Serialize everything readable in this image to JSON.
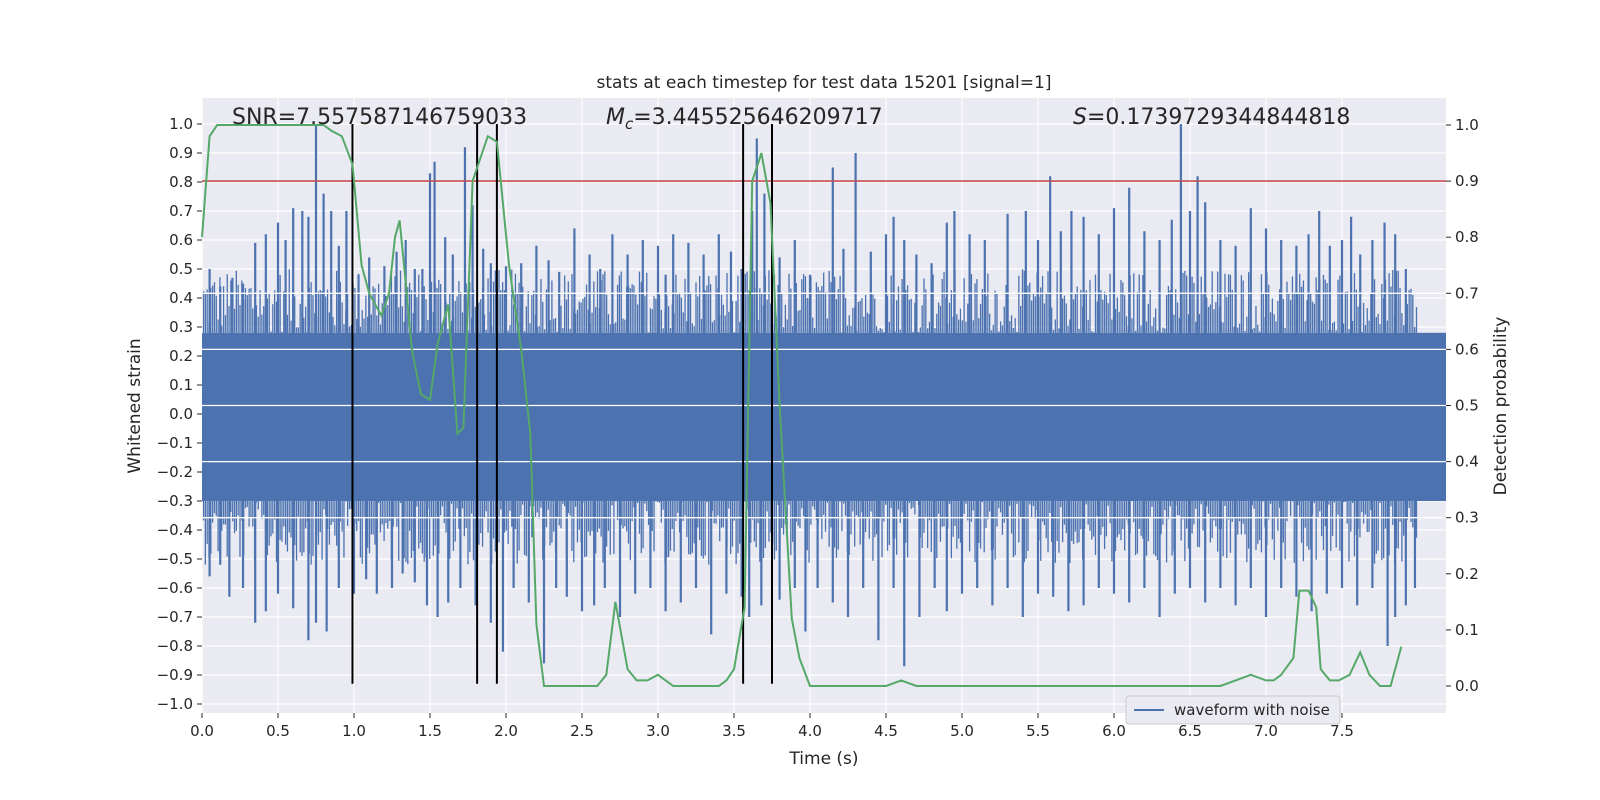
{
  "chart_data": {
    "type": "line",
    "title": "stats at each timestep for test data 15201 [signal=1]",
    "xlabel": "Time (s)",
    "ylabel_left": "Whitened strain",
    "ylabel_right": "Detection probability",
    "xlim": [
      0.0,
      8.0
    ],
    "ylim_left": [
      -1.05,
      1.05
    ],
    "ylim_right": [
      -0.05,
      1.05
    ],
    "x_ticks": [
      "0.0",
      "0.5",
      "1.0",
      "1.5",
      "2.0",
      "2.5",
      "3.0",
      "3.5",
      "4.0",
      "4.5",
      "5.0",
      "5.5",
      "6.0",
      "6.5",
      "7.0",
      "7.5"
    ],
    "left_ticks": [
      "1.0",
      "0.9",
      "0.8",
      "0.7",
      "0.6",
      "0.5",
      "0.4",
      "0.3",
      "0.2",
      "0.1",
      "0.0",
      "−0.1",
      "−0.2",
      "−0.3",
      "−0.4",
      "−0.5",
      "−0.6",
      "−0.7",
      "−0.8",
      "−0.9",
      "−1.0"
    ],
    "right_ticks": [
      "1.0",
      "0.9",
      "0.8",
      "0.7",
      "0.6",
      "0.5",
      "0.4",
      "0.3",
      "0.2",
      "0.1",
      "0.0"
    ],
    "annotations": {
      "snr": "SNR=7.557587146759033",
      "mc_symbol": "M",
      "mc_sub": "c",
      "mc_value": "=3.445525646209717",
      "s_symbol": "S",
      "s_value": "=0.1739729344844818"
    },
    "legend": {
      "label": "waveform with noise",
      "position": "lower-right"
    },
    "threshold_right": 0.9,
    "vertical_lines_x": [
      0.99,
      1.81,
      1.94,
      3.56,
      3.75
    ],
    "vertical_lines_y": [
      -0.93,
      1.0
    ],
    "strain_series": {
      "name": "waveform with noise",
      "color": "#4c72b0",
      "band_upper": 0.28,
      "band_lower": -0.3,
      "spikes_up": [
        [
          0.05,
          0.5
        ],
        [
          0.12,
          0.44
        ],
        [
          0.2,
          0.47
        ],
        [
          0.27,
          0.45
        ],
        [
          0.35,
          0.59
        ],
        [
          0.42,
          0.62
        ],
        [
          0.5,
          0.66
        ],
        [
          0.55,
          0.6
        ],
        [
          0.6,
          0.71
        ],
        [
          0.66,
          0.7
        ],
        [
          0.7,
          0.68
        ],
        [
          0.75,
          1.0
        ],
        [
          0.8,
          0.76
        ],
        [
          0.85,
          0.7
        ],
        [
          0.9,
          0.58
        ],
        [
          0.95,
          0.7
        ],
        [
          1.03,
          0.48
        ],
        [
          1.1,
          0.54
        ],
        [
          1.2,
          0.51
        ],
        [
          1.28,
          0.56
        ],
        [
          1.34,
          0.6
        ],
        [
          1.4,
          0.5
        ],
        [
          1.45,
          0.5
        ],
        [
          1.5,
          0.83
        ],
        [
          1.53,
          0.87
        ],
        [
          1.6,
          0.61
        ],
        [
          1.65,
          0.55
        ],
        [
          1.73,
          0.92
        ],
        [
          1.78,
          0.72
        ],
        [
          1.85,
          0.57
        ],
        [
          1.9,
          0.52
        ],
        [
          2.0,
          0.51
        ],
        [
          2.1,
          0.52
        ],
        [
          2.2,
          0.58
        ],
        [
          2.28,
          0.53
        ],
        [
          2.35,
          0.49
        ],
        [
          2.45,
          0.64
        ],
        [
          2.55,
          0.55
        ],
        [
          2.62,
          0.5
        ],
        [
          2.7,
          0.62
        ],
        [
          2.8,
          0.55
        ],
        [
          2.9,
          0.6
        ],
        [
          3.0,
          0.58
        ],
        [
          3.05,
          0.48
        ],
        [
          3.1,
          0.62
        ],
        [
          3.2,
          0.59
        ],
        [
          3.3,
          0.55
        ],
        [
          3.4,
          0.62
        ],
        [
          3.48,
          0.56
        ],
        [
          3.55,
          0.5
        ],
        [
          3.62,
          0.7
        ],
        [
          3.65,
          0.95
        ],
        [
          3.7,
          0.76
        ],
        [
          3.8,
          0.54
        ],
        [
          3.9,
          0.6
        ],
        [
          4.0,
          0.48
        ],
        [
          4.15,
          0.85
        ],
        [
          4.22,
          0.57
        ],
        [
          4.3,
          0.9
        ],
        [
          4.4,
          0.56
        ],
        [
          4.5,
          0.62
        ],
        [
          4.55,
          0.68
        ],
        [
          4.62,
          0.6
        ],
        [
          4.7,
          0.55
        ],
        [
          4.8,
          0.52
        ],
        [
          4.9,
          0.66
        ],
        [
          4.95,
          0.7
        ],
        [
          5.05,
          0.62
        ],
        [
          5.15,
          0.6
        ],
        [
          5.3,
          0.69
        ],
        [
          5.42,
          0.7
        ],
        [
          5.5,
          0.6
        ],
        [
          5.58,
          0.82
        ],
        [
          5.65,
          0.63
        ],
        [
          5.72,
          0.7
        ],
        [
          5.8,
          0.68
        ],
        [
          5.9,
          0.62
        ],
        [
          6.0,
          0.71
        ],
        [
          6.1,
          0.78
        ],
        [
          6.2,
          0.63
        ],
        [
          6.3,
          0.6
        ],
        [
          6.38,
          0.67
        ],
        [
          6.44,
          1.0
        ],
        [
          6.5,
          0.7
        ],
        [
          6.55,
          0.82
        ],
        [
          6.6,
          0.73
        ],
        [
          6.7,
          0.6
        ],
        [
          6.8,
          0.58
        ],
        [
          6.9,
          0.71
        ],
        [
          7.0,
          0.64
        ],
        [
          7.1,
          0.6
        ],
        [
          7.2,
          0.58
        ],
        [
          7.28,
          0.62
        ],
        [
          7.35,
          0.7
        ],
        [
          7.42,
          0.58
        ],
        [
          7.5,
          0.6
        ],
        [
          7.56,
          0.68
        ],
        [
          7.62,
          0.55
        ],
        [
          7.7,
          0.6
        ],
        [
          7.78,
          0.66
        ],
        [
          7.85,
          0.62
        ],
        [
          7.92,
          0.5
        ],
        [
          7.98,
          0.28
        ]
      ],
      "spikes_down": [
        [
          0.05,
          -0.56
        ],
        [
          0.12,
          -0.52
        ],
        [
          0.18,
          -0.63
        ],
        [
          0.27,
          -0.6
        ],
        [
          0.35,
          -0.72
        ],
        [
          0.42,
          -0.68
        ],
        [
          0.5,
          -0.62
        ],
        [
          0.6,
          -0.67
        ],
        [
          0.7,
          -0.78
        ],
        [
          0.75,
          -0.72
        ],
        [
          0.82,
          -0.75
        ],
        [
          0.9,
          -0.6
        ],
        [
          1.0,
          -0.62
        ],
        [
          1.08,
          -0.57
        ],
        [
          1.15,
          -0.62
        ],
        [
          1.25,
          -0.6
        ],
        [
          1.32,
          -0.55
        ],
        [
          1.4,
          -0.58
        ],
        [
          1.48,
          -0.66
        ],
        [
          1.55,
          -0.7
        ],
        [
          1.62,
          -0.65
        ],
        [
          1.7,
          -0.6
        ],
        [
          1.8,
          -0.66
        ],
        [
          1.9,
          -0.72
        ],
        [
          1.98,
          -0.82
        ],
        [
          2.05,
          -0.6
        ],
        [
          2.15,
          -0.65
        ],
        [
          2.25,
          -0.86
        ],
        [
          2.33,
          -0.6
        ],
        [
          2.4,
          -0.63
        ],
        [
          2.5,
          -0.68
        ],
        [
          2.58,
          -0.66
        ],
        [
          2.65,
          -0.6
        ],
        [
          2.75,
          -0.7
        ],
        [
          2.85,
          -0.62
        ],
        [
          2.95,
          -0.6
        ],
        [
          3.05,
          -0.68
        ],
        [
          3.15,
          -0.65
        ],
        [
          3.25,
          -0.6
        ],
        [
          3.35,
          -0.76
        ],
        [
          3.45,
          -0.62
        ],
        [
          3.55,
          -0.63
        ],
        [
          3.6,
          -0.7
        ],
        [
          3.68,
          -0.66
        ],
        [
          3.8,
          -0.64
        ],
        [
          3.9,
          -0.6
        ],
        [
          3.97,
          -0.75
        ],
        [
          4.05,
          -0.6
        ],
        [
          4.15,
          -0.65
        ],
        [
          4.25,
          -0.7
        ],
        [
          4.35,
          -0.6
        ],
        [
          4.45,
          -0.78
        ],
        [
          4.55,
          -0.6
        ],
        [
          4.62,
          -0.87
        ],
        [
          4.72,
          -0.7
        ],
        [
          4.82,
          -0.6
        ],
        [
          4.9,
          -0.68
        ],
        [
          5.0,
          -0.62
        ],
        [
          5.1,
          -0.6
        ],
        [
          5.2,
          -0.66
        ],
        [
          5.3,
          -0.6
        ],
        [
          5.4,
          -0.7
        ],
        [
          5.5,
          -0.62
        ],
        [
          5.6,
          -0.63
        ],
        [
          5.7,
          -0.68
        ],
        [
          5.8,
          -0.66
        ],
        [
          5.9,
          -0.6
        ],
        [
          6.0,
          -0.62
        ],
        [
          6.1,
          -0.65
        ],
        [
          6.2,
          -0.6
        ],
        [
          6.3,
          -0.7
        ],
        [
          6.4,
          -0.62
        ],
        [
          6.5,
          -0.6
        ],
        [
          6.6,
          -0.65
        ],
        [
          6.7,
          -0.6
        ],
        [
          6.8,
          -0.66
        ],
        [
          6.9,
          -0.6
        ],
        [
          7.0,
          -0.7
        ],
        [
          7.1,
          -0.6
        ],
        [
          7.2,
          -0.63
        ],
        [
          7.3,
          -0.68
        ],
        [
          7.4,
          -0.62
        ],
        [
          7.5,
          -0.6
        ],
        [
          7.6,
          -0.66
        ],
        [
          7.7,
          -0.6
        ],
        [
          7.8,
          -0.8
        ],
        [
          7.85,
          -0.7
        ],
        [
          7.92,
          -0.66
        ],
        [
          7.98,
          -0.6
        ]
      ]
    },
    "probability_series": {
      "name": "detection probability",
      "color": "#55a868",
      "x": [
        0.0,
        0.05,
        0.1,
        0.2,
        0.3,
        0.4,
        0.5,
        0.6,
        0.7,
        0.8,
        0.85,
        0.92,
        0.99,
        1.05,
        1.1,
        1.18,
        1.23,
        1.27,
        1.3,
        1.34,
        1.38,
        1.44,
        1.5,
        1.55,
        1.62,
        1.68,
        1.72,
        1.78,
        1.88,
        1.94,
        2.02,
        2.1,
        2.16,
        2.2,
        2.25,
        2.35,
        2.45,
        2.55,
        2.6,
        2.66,
        2.72,
        2.8,
        2.86,
        2.93,
        3.0,
        3.1,
        3.2,
        3.3,
        3.4,
        3.45,
        3.5,
        3.57,
        3.62,
        3.68,
        3.74,
        3.8,
        3.88,
        3.93,
        4.0,
        4.1,
        4.2,
        4.3,
        4.5,
        4.6,
        4.7,
        4.8,
        5.0,
        5.2,
        5.4,
        5.6,
        5.8,
        6.0,
        6.2,
        6.4,
        6.6,
        6.7,
        6.8,
        6.9,
        7.0,
        7.05,
        7.1,
        7.18,
        7.22,
        7.28,
        7.33,
        7.36,
        7.42,
        7.48,
        7.55,
        7.62,
        7.68,
        7.75,
        7.82,
        7.89
      ],
      "y": [
        0.8,
        0.98,
        1.0,
        1.0,
        1.0,
        1.0,
        1.0,
        1.0,
        1.0,
        1.0,
        0.99,
        0.98,
        0.93,
        0.75,
        0.7,
        0.66,
        0.7,
        0.8,
        0.83,
        0.72,
        0.6,
        0.52,
        0.51,
        0.61,
        0.68,
        0.45,
        0.46,
        0.9,
        0.98,
        0.97,
        0.75,
        0.6,
        0.45,
        0.11,
        0.0,
        0.0,
        0.0,
        0.0,
        0.0,
        0.02,
        0.15,
        0.03,
        0.01,
        0.01,
        0.02,
        0.0,
        0.0,
        0.0,
        0.0,
        0.01,
        0.03,
        0.14,
        0.9,
        0.95,
        0.86,
        0.5,
        0.12,
        0.05,
        0.0,
        0.0,
        0.0,
        0.0,
        0.0,
        0.01,
        0.0,
        0.0,
        0.0,
        0.0,
        0.0,
        0.0,
        0.0,
        0.0,
        0.0,
        0.0,
        0.0,
        0.0,
        0.01,
        0.02,
        0.01,
        0.01,
        0.02,
        0.05,
        0.17,
        0.17,
        0.14,
        0.03,
        0.01,
        0.01,
        0.02,
        0.06,
        0.02,
        0.0,
        0.0,
        0.07
      ]
    },
    "colors": {
      "plot_bg": "#eaeaf2",
      "grid": "#ffffff",
      "threshold": "#c44e52",
      "vline": "#000000"
    }
  }
}
